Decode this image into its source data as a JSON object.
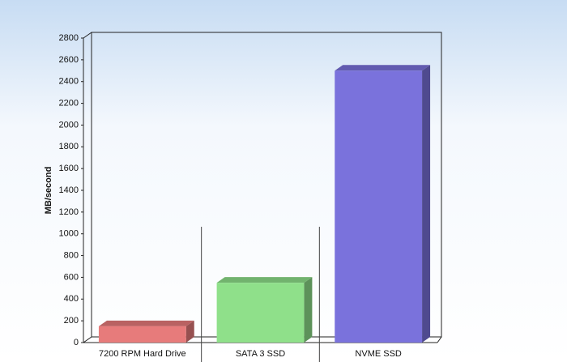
{
  "chart_data": {
    "type": "bar",
    "y_label": "MB/second",
    "categories": [
      "7200 RPM Hard Drive",
      "SATA 3 SSD",
      "NVME SSD"
    ],
    "values": [
      150,
      550,
      2500
    ],
    "colors": [
      "#e77b7b",
      "#8fe08a",
      "#7a72dc"
    ],
    "ylim": [
      0,
      2800
    ],
    "yticks": [
      0,
      200,
      400,
      600,
      800,
      1000,
      1200,
      1400,
      1600,
      1800,
      2000,
      2200,
      2400,
      2600,
      2800
    ],
    "grid": false
  }
}
